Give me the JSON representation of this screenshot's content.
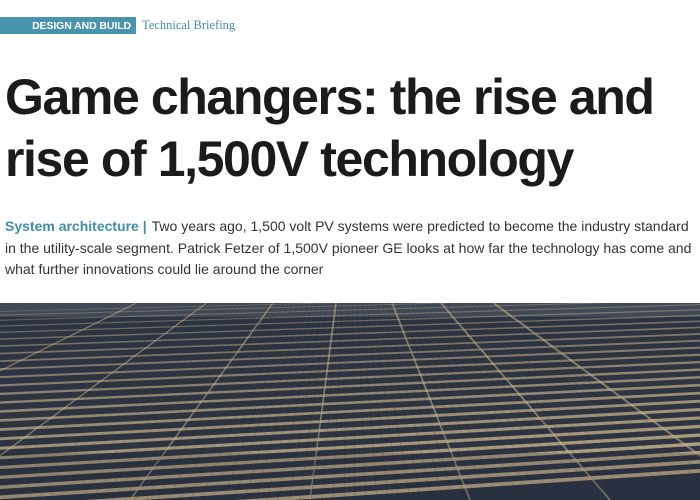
{
  "header": {
    "section": "DESIGN AND BUILD",
    "category": "Technical Briefing"
  },
  "article": {
    "headline": "Game changers: the rise and rise of 1,500V technology",
    "topic": "System architecture",
    "separator": "|",
    "standfirst": "Two years ago, 1,500 volt PV systems were predicted to become the industry standard in the utility-scale segment. Patrick Fetzer of 1,500V pioneer GE looks at how far the technology has come and what further innovations could lie around the corner"
  },
  "photo": {
    "subject": "solar-farm-aerial",
    "panel_color": "#2c3442",
    "ground_color": "#cdb48c"
  }
}
